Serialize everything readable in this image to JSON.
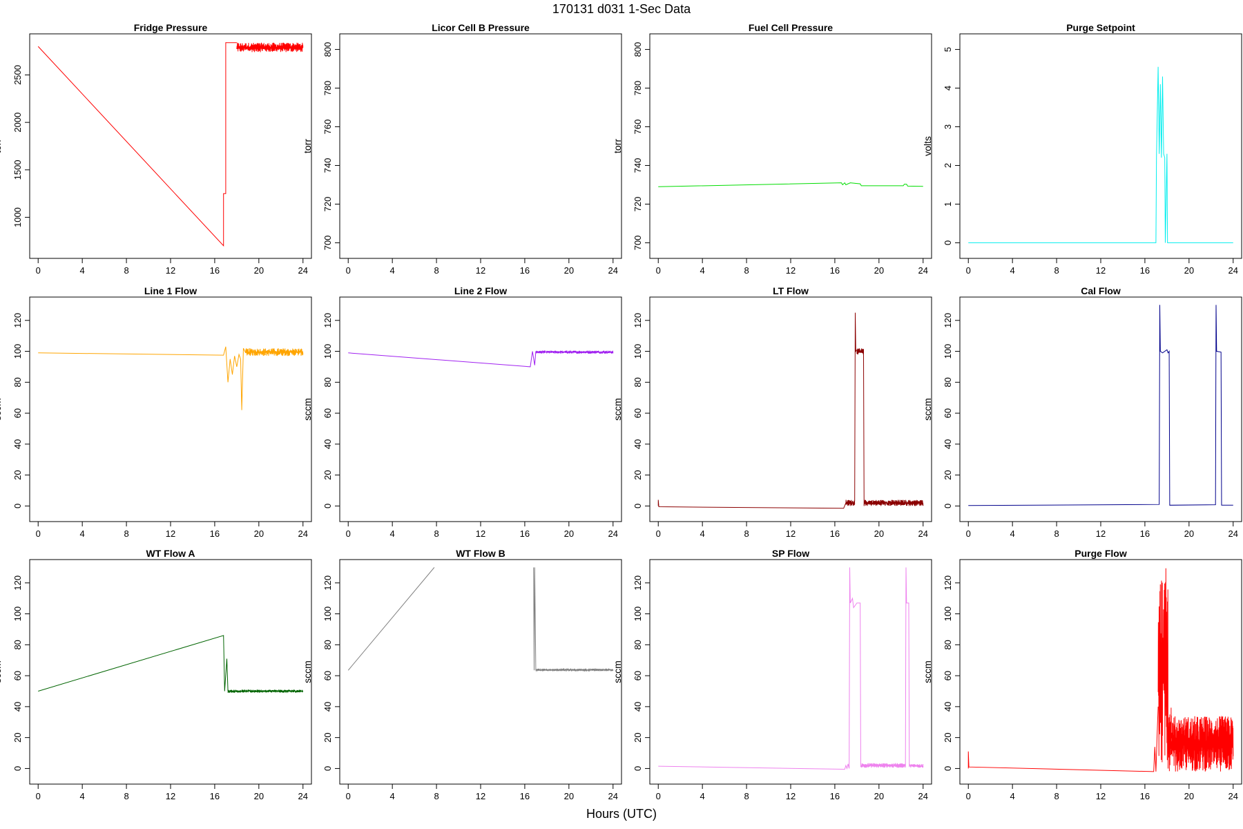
{
  "page": {
    "title": "170131    d031    1-Sec Data",
    "xlabel": "Hours (UTC)"
  },
  "chart_data": [
    {
      "type": "line",
      "title": "Fridge Pressure",
      "ylabel": "torr",
      "color": "#ff0000",
      "xlim": [
        0,
        24
      ],
      "ylim": [
        650,
        2850
      ],
      "xticks": [
        0,
        4,
        8,
        12,
        16,
        20,
        24
      ],
      "yticks": [
        1000,
        1500,
        2000,
        2500
      ],
      "series": [
        {
          "x": [
            0,
            16.8,
            16.8,
            17.0,
            17.0,
            17.2,
            18.0
          ],
          "y": [
            2800,
            700,
            1250,
            1250,
            2840,
            2840,
            2840
          ]
        },
        {
          "noise": true,
          "x_range": [
            18.0,
            24.0
          ],
          "y_band": [
            2740,
            2840
          ],
          "n": 320
        }
      ]
    },
    {
      "type": "line",
      "title": "Licor Cell B Pressure",
      "ylabel": "torr",
      "color": "#000000",
      "xlim": [
        0,
        24
      ],
      "ylim": [
        696,
        804
      ],
      "xticks": [
        0,
        4,
        8,
        12,
        16,
        20,
        24
      ],
      "yticks": [
        700,
        720,
        740,
        760,
        780,
        800
      ],
      "series": []
    },
    {
      "type": "line",
      "title": "Fuel Cell Pressure",
      "ylabel": "torr",
      "color": "#00dd00",
      "xlim": [
        0,
        24
      ],
      "ylim": [
        696,
        804
      ],
      "xticks": [
        0,
        4,
        8,
        12,
        16,
        20,
        24
      ],
      "yticks": [
        700,
        720,
        740,
        760,
        780,
        800
      ],
      "series": [
        {
          "x": [
            0,
            16.6,
            16.7,
            16.9,
            17.0,
            17.4,
            18.3,
            18.4,
            22.2,
            22.3,
            22.5,
            22.6,
            24.0
          ],
          "y": [
            729,
            731,
            730,
            731,
            730,
            731,
            730.5,
            729.5,
            729.5,
            730.3,
            730.3,
            729.3,
            729.2
          ]
        }
      ]
    },
    {
      "type": "line",
      "title": "Purge Setpoint",
      "ylabel": "volts",
      "color": "#00eeee",
      "xlim": [
        0,
        24
      ],
      "ylim": [
        -0.2,
        5.2
      ],
      "xticks": [
        0,
        4,
        8,
        12,
        16,
        20,
        24
      ],
      "yticks": [
        0,
        1,
        2,
        3,
        4,
        5
      ],
      "series": [
        {
          "x": [
            0,
            17.0,
            17.05,
            17.2,
            17.3,
            17.4,
            17.5,
            17.6,
            17.7,
            17.8,
            17.85,
            18.0,
            18.05,
            24.0
          ],
          "y": [
            0,
            0,
            2.2,
            4.55,
            2.3,
            4.1,
            2.2,
            4.3,
            2.3,
            2.2,
            0,
            2.3,
            0,
            0
          ]
        }
      ]
    },
    {
      "type": "line",
      "title": "Line 1 Flow",
      "ylabel": "sccm",
      "color": "#ffa500",
      "xlim": [
        0,
        24
      ],
      "ylim": [
        -5,
        130
      ],
      "xticks": [
        0,
        4,
        8,
        12,
        16,
        20,
        24
      ],
      "yticks": [
        0,
        20,
        40,
        60,
        80,
        100,
        120
      ],
      "series": [
        {
          "x": [
            0,
            16.8,
            17.0,
            17.2,
            17.4,
            17.6,
            17.8,
            18.0,
            18.2,
            18.35,
            18.45,
            18.6,
            18.8
          ],
          "y": [
            99,
            97.5,
            103,
            80,
            95,
            85,
            97,
            90,
            98,
            95,
            62,
            102,
            99
          ]
        },
        {
          "noise": true,
          "x_range": [
            18.8,
            24.0
          ],
          "y_band": [
            97,
            102
          ],
          "n": 240
        }
      ]
    },
    {
      "type": "line",
      "title": "Line 2 Flow",
      "ylabel": "sccm",
      "color": "#a020f0",
      "xlim": [
        0,
        24
      ],
      "ylim": [
        -5,
        130
      ],
      "xticks": [
        0,
        4,
        8,
        12,
        16,
        20,
        24
      ],
      "yticks": [
        0,
        20,
        40,
        60,
        80,
        100,
        120
      ],
      "series": [
        {
          "x": [
            0,
            16.5,
            16.7,
            16.9,
            17.0
          ],
          "y": [
            99,
            90,
            100,
            91,
            100
          ]
        },
        {
          "noise": true,
          "x_range": [
            17.0,
            24.0
          ],
          "y_band": [
            98.5,
            100.5
          ],
          "n": 260
        }
      ]
    },
    {
      "type": "line",
      "title": "LT Flow",
      "ylabel": "sccm",
      "color": "#8b0000",
      "xlim": [
        0,
        24
      ],
      "ylim": [
        -5,
        130
      ],
      "xticks": [
        0,
        4,
        8,
        12,
        16,
        20,
        24
      ],
      "yticks": [
        0,
        20,
        40,
        60,
        80,
        100,
        120
      ],
      "series": [
        {
          "x": [
            0,
            0,
            0.05,
            16.8,
            17.0
          ],
          "y": [
            0,
            4,
            -0.5,
            -1.5,
            2
          ]
        },
        {
          "noise": true,
          "x_range": [
            17.0,
            17.8
          ],
          "y_band": [
            0,
            4
          ],
          "n": 60
        },
        {
          "x": [
            17.8,
            17.85,
            17.9,
            18.0
          ],
          "y": [
            3,
            125,
            100,
            101
          ]
        },
        {
          "noise": true,
          "x_range": [
            18.0,
            18.6
          ],
          "y_band": [
            98,
            102
          ],
          "n": 50
        },
        {
          "x": [
            18.6,
            18.65,
            18.7
          ],
          "y": [
            101,
            0,
            3
          ]
        },
        {
          "noise": true,
          "x_range": [
            18.7,
            24.0
          ],
          "y_band": [
            0,
            4
          ],
          "n": 300
        }
      ]
    },
    {
      "type": "line",
      "title": "Cal Flow",
      "ylabel": "sccm",
      "color": "#00008b",
      "xlim": [
        0,
        24
      ],
      "ylim": [
        -5,
        130
      ],
      "xticks": [
        0,
        4,
        8,
        12,
        16,
        20,
        24
      ],
      "yticks": [
        0,
        20,
        40,
        60,
        80,
        100,
        120
      ],
      "series": [
        {
          "x": [
            0,
            17.3,
            17.35,
            17.4,
            17.6,
            18.0,
            18.1,
            18.2,
            18.25,
            22.4,
            22.45,
            22.5,
            22.9,
            22.95,
            24.0
          ],
          "y": [
            0.3,
            1,
            130,
            100,
            99,
            101,
            99,
            100,
            0.5,
            0.8,
            130,
            100,
            99.5,
            0.5,
            0.5
          ]
        }
      ]
    },
    {
      "type": "line",
      "title": "WT Flow A",
      "ylabel": "sccm",
      "color": "#006400",
      "xlim": [
        0,
        24
      ],
      "ylim": [
        -5,
        130
      ],
      "xticks": [
        0,
        4,
        8,
        12,
        16,
        20,
        24
      ],
      "yticks": [
        0,
        20,
        40,
        60,
        80,
        100,
        120
      ],
      "series": [
        {
          "x": [
            0,
            16.8,
            16.9,
            17.1,
            17.2
          ],
          "y": [
            50,
            86,
            50,
            71,
            50
          ]
        },
        {
          "noise": true,
          "x_range": [
            17.2,
            24.0
          ],
          "y_band": [
            49,
            51
          ],
          "n": 260
        }
      ]
    },
    {
      "type": "line",
      "title": "WT Flow B",
      "ylabel": "sccm",
      "color": "#808080",
      "xlim": [
        0,
        24
      ],
      "ylim": [
        -5,
        130
      ],
      "xticks": [
        0,
        4,
        8,
        12,
        16,
        20,
        24
      ],
      "yticks": [
        0,
        20,
        40,
        60,
        80,
        100,
        120
      ],
      "series": [
        {
          "x": [
            0,
            7.8
          ],
          "y": [
            63.5,
            130
          ]
        },
        {
          "x": [
            16.8,
            16.85,
            16.9,
            17.0
          ],
          "y": [
            130,
            63.5,
            130,
            63.5
          ]
        },
        {
          "noise": true,
          "x_range": [
            17.0,
            24.0
          ],
          "y_band": [
            63,
            64.5
          ],
          "n": 260
        }
      ]
    },
    {
      "type": "line",
      "title": "SP Flow",
      "ylabel": "sccm",
      "color": "#ee82ee",
      "xlim": [
        0,
        24
      ],
      "ylim": [
        -5,
        130
      ],
      "xticks": [
        0,
        4,
        8,
        12,
        16,
        20,
        24
      ],
      "yticks": [
        0,
        20,
        40,
        60,
        80,
        100,
        120
      ],
      "series": [
        {
          "x": [
            0,
            16.9,
            17.0,
            17.1,
            17.2,
            17.3,
            17.35,
            17.4,
            17.6,
            17.7,
            17.9,
            18.0,
            18.3,
            18.35
          ],
          "y": [
            1.5,
            -0.5,
            2,
            0,
            3,
            0,
            130,
            107,
            110,
            104,
            106,
            107,
            107,
            1
          ]
        },
        {
          "noise": true,
          "x_range": [
            18.4,
            22.4
          ],
          "y_band": [
            0.5,
            3.5
          ],
          "n": 200
        },
        {
          "x": [
            22.4,
            22.45,
            22.5,
            22.7,
            22.75
          ],
          "y": [
            1,
            130,
            107,
            107,
            1
          ]
        },
        {
          "noise": true,
          "x_range": [
            22.8,
            24.0
          ],
          "y_band": [
            0.5,
            3
          ],
          "n": 60
        }
      ]
    },
    {
      "type": "line",
      "title": "Purge Flow",
      "ylabel": "sccm",
      "color": "#ff0000",
      "xlim": [
        0,
        24
      ],
      "ylim": [
        -5,
        130
      ],
      "xticks": [
        0,
        4,
        8,
        12,
        16,
        20,
        24
      ],
      "yticks": [
        0,
        20,
        40,
        60,
        80,
        100,
        120
      ],
      "series": [
        {
          "x": [
            0,
            0,
            0.05,
            16.8,
            16.9,
            17.0,
            17.1,
            17.2
          ],
          "y": [
            0,
            11,
            1,
            -2,
            14,
            -2,
            20,
            40
          ]
        },
        {
          "noise": true,
          "x_range": [
            17.2,
            18.1
          ],
          "y_band": [
            -2,
            130
          ],
          "n": 50
        },
        {
          "noise": true,
          "x_range": [
            18.1,
            18.4
          ],
          "y_band": [
            -2,
            44
          ],
          "n": 25
        },
        {
          "noise": true,
          "x_range": [
            18.4,
            24.0
          ],
          "y_band": [
            -2,
            34
          ],
          "n": 420
        }
      ]
    }
  ]
}
